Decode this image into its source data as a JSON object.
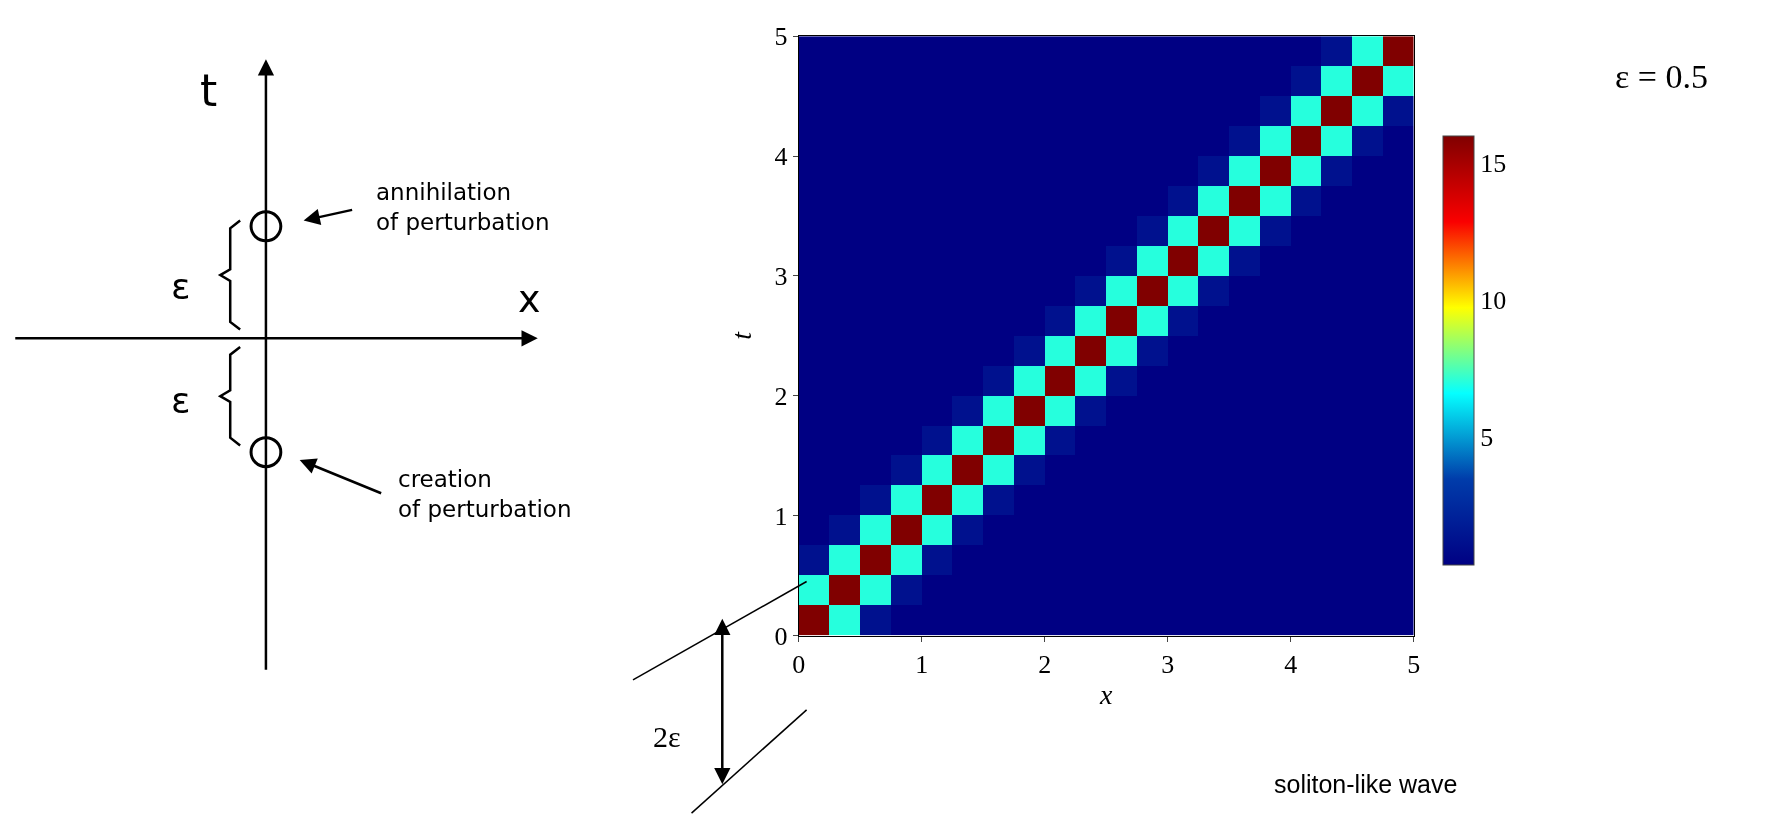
{
  "chart_data": {
    "type": "heatmap",
    "xlabel": "x",
    "ylabel": "t",
    "x": [
      0.125,
      0.375,
      0.625,
      0.875,
      1.125,
      1.375,
      1.625,
      1.875,
      2.125,
      2.375,
      2.625,
      2.875,
      3.125,
      3.375,
      3.625,
      3.875,
      4.125,
      4.375,
      4.625,
      4.875
    ],
    "y": [
      4.875,
      4.625,
      4.375,
      4.125,
      3.875,
      3.625,
      3.375,
      3.125,
      2.875,
      2.625,
      2.375,
      2.125,
      1.875,
      1.625,
      1.375,
      1.125,
      0.875,
      0.625,
      0.375,
      0.125
    ],
    "cells": [
      [
        0.3,
        0.3,
        0.3,
        0.3,
        0.3,
        0.3,
        0.3,
        0.3,
        0.3,
        0.3,
        0.3,
        0.3,
        0.3,
        0.3,
        0.3,
        0.3,
        0.3,
        1.2,
        7,
        16
      ],
      [
        0.3,
        0.3,
        0.3,
        0.3,
        0.3,
        0.3,
        0.3,
        0.3,
        0.3,
        0.3,
        0.3,
        0.3,
        0.3,
        0.3,
        0.3,
        0.3,
        1.2,
        7,
        16,
        7
      ],
      [
        0.3,
        0.3,
        0.3,
        0.3,
        0.3,
        0.3,
        0.3,
        0.3,
        0.3,
        0.3,
        0.3,
        0.3,
        0.3,
        0.3,
        0.3,
        1.2,
        7,
        16,
        7,
        1.2
      ],
      [
        0.3,
        0.3,
        0.3,
        0.3,
        0.3,
        0.3,
        0.3,
        0.3,
        0.3,
        0.3,
        0.3,
        0.3,
        0.3,
        0.3,
        1.2,
        7,
        16,
        7,
        1.2,
        0.3
      ],
      [
        0.3,
        0.3,
        0.3,
        0.3,
        0.3,
        0.3,
        0.3,
        0.3,
        0.3,
        0.3,
        0.3,
        0.3,
        0.3,
        1.2,
        7,
        16,
        7,
        1.2,
        0.3,
        0.3
      ],
      [
        0.3,
        0.3,
        0.3,
        0.3,
        0.3,
        0.3,
        0.3,
        0.3,
        0.3,
        0.3,
        0.3,
        0.3,
        1.2,
        7,
        16,
        7,
        1.2,
        0.3,
        0.3,
        0.3
      ],
      [
        0.3,
        0.3,
        0.3,
        0.3,
        0.3,
        0.3,
        0.3,
        0.3,
        0.3,
        0.3,
        0.3,
        1.2,
        7,
        16,
        7,
        1.2,
        0.3,
        0.3,
        0.3,
        0.3
      ],
      [
        0.3,
        0.3,
        0.3,
        0.3,
        0.3,
        0.3,
        0.3,
        0.3,
        0.3,
        0.3,
        1.2,
        7,
        16,
        7,
        1.2,
        0.3,
        0.3,
        0.3,
        0.3,
        0.3
      ],
      [
        0.3,
        0.3,
        0.3,
        0.3,
        0.3,
        0.3,
        0.3,
        0.3,
        0.3,
        1.2,
        7,
        16,
        7,
        1.2,
        0.3,
        0.3,
        0.3,
        0.3,
        0.3,
        0.3
      ],
      [
        0.3,
        0.3,
        0.3,
        0.3,
        0.3,
        0.3,
        0.3,
        0.3,
        1.2,
        7,
        16,
        7,
        1.2,
        0.3,
        0.3,
        0.3,
        0.3,
        0.3,
        0.3,
        0.3
      ],
      [
        0.3,
        0.3,
        0.3,
        0.3,
        0.3,
        0.3,
        0.3,
        1.2,
        7,
        16,
        7,
        1.2,
        0.3,
        0.3,
        0.3,
        0.3,
        0.3,
        0.3,
        0.3,
        0.3
      ],
      [
        0.3,
        0.3,
        0.3,
        0.3,
        0.3,
        0.3,
        1.2,
        7,
        16,
        7,
        1.2,
        0.3,
        0.3,
        0.3,
        0.3,
        0.3,
        0.3,
        0.3,
        0.3,
        0.3
      ],
      [
        0.3,
        0.3,
        0.3,
        0.3,
        0.3,
        1.2,
        7,
        16,
        7,
        1.2,
        0.3,
        0.3,
        0.3,
        0.3,
        0.3,
        0.3,
        0.3,
        0.3,
        0.3,
        0.3
      ],
      [
        0.3,
        0.3,
        0.3,
        0.3,
        1.2,
        7,
        16,
        7,
        1.2,
        0.3,
        0.3,
        0.3,
        0.3,
        0.3,
        0.3,
        0.3,
        0.3,
        0.3,
        0.3,
        0.3
      ],
      [
        0.3,
        0.3,
        0.3,
        1.2,
        7,
        16,
        7,
        1.2,
        0.3,
        0.3,
        0.3,
        0.3,
        0.3,
        0.3,
        0.3,
        0.3,
        0.3,
        0.3,
        0.3,
        0.3
      ],
      [
        0.3,
        0.3,
        1.2,
        7,
        16,
        7,
        1.2,
        0.3,
        0.3,
        0.3,
        0.3,
        0.3,
        0.3,
        0.3,
        0.3,
        0.3,
        0.3,
        0.3,
        0.3,
        0.3
      ],
      [
        0.3,
        1.2,
        7,
        16,
        7,
        1.2,
        0.3,
        0.3,
        0.3,
        0.3,
        0.3,
        0.3,
        0.3,
        0.3,
        0.3,
        0.3,
        0.3,
        0.3,
        0.3,
        0.3
      ],
      [
        1.2,
        7,
        16,
        7,
        1.2,
        0.3,
        0.3,
        0.3,
        0.3,
        0.3,
        0.3,
        0.3,
        0.3,
        0.3,
        0.3,
        0.3,
        0.3,
        0.3,
        0.3,
        0.3
      ],
      [
        7,
        16,
        7,
        1.2,
        0.3,
        0.3,
        0.3,
        0.3,
        0.3,
        0.3,
        0.3,
        0.3,
        0.3,
        0.3,
        0.3,
        0.3,
        0.3,
        0.3,
        0.3,
        0.3
      ],
      [
        16,
        7,
        1.2,
        0.3,
        0.3,
        0.3,
        0.3,
        0.3,
        0.3,
        0.3,
        0.3,
        0.3,
        0.3,
        0.3,
        0.3,
        0.3,
        0.3,
        0.3,
        0.3,
        0.3
      ]
    ],
    "xlim": [
      0,
      5
    ],
    "ylim": [
      0,
      5
    ],
    "xticks": [
      0,
      1,
      2,
      3,
      4,
      5
    ],
    "yticks": [
      0,
      1,
      2,
      3,
      4,
      5
    ],
    "clim": [
      0.3,
      16
    ],
    "cticks": [
      5,
      10,
      15
    ],
    "annotations": [
      "t",
      "x",
      "ε",
      "ε",
      "annihilation\nof perturbation",
      "creation\nof perturbation",
      "ε = 0.5",
      "2ε",
      "soliton-like wave"
    ]
  }
}
